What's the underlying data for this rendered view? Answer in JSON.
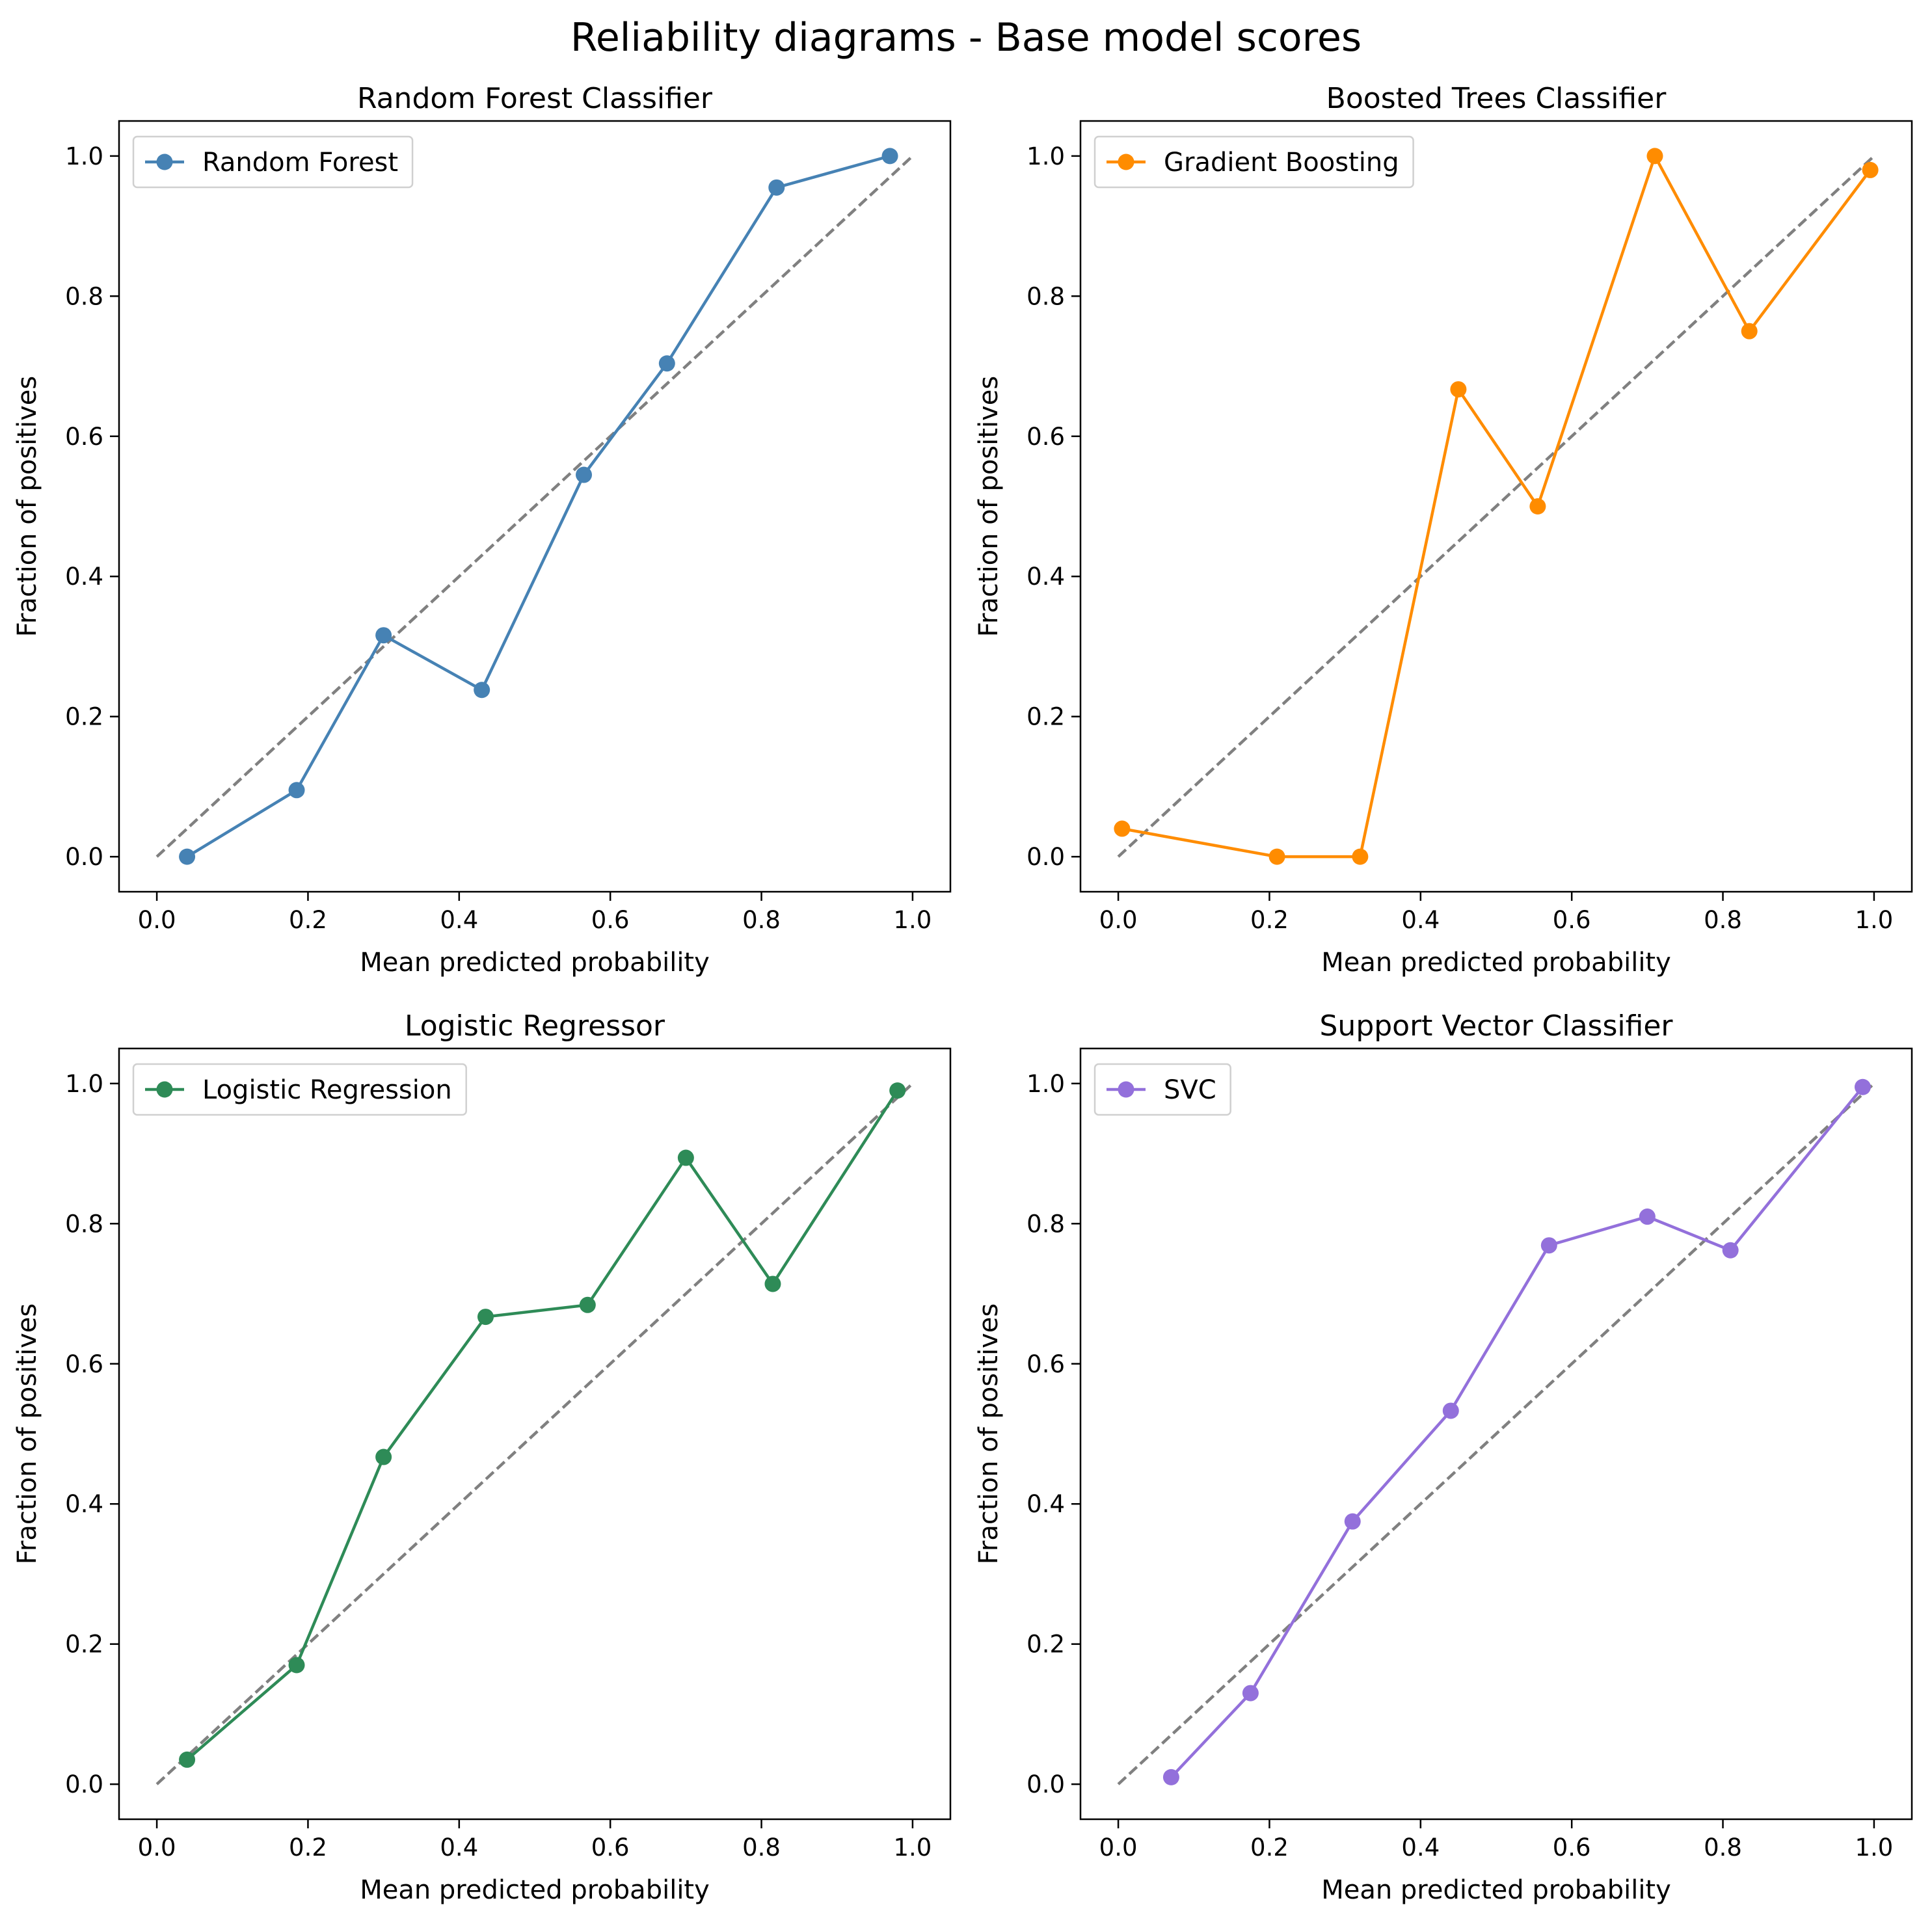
{
  "suptitle": "Reliability diagrams - Base model scores",
  "reference_line": {
    "color": "#808080",
    "style": "dashed",
    "points": [
      [
        0,
        0
      ],
      [
        1,
        1
      ]
    ]
  },
  "chart_data": [
    {
      "type": "line",
      "title": "Random Forest Classifier",
      "xlabel": "Mean predicted probability",
      "ylabel": "Fraction of positives",
      "xlim": [
        -0.05,
        1.05
      ],
      "ylim": [
        -0.05,
        1.05
      ],
      "xticks": [
        "0.0",
        "0.2",
        "0.4",
        "0.6",
        "0.8",
        "1.0"
      ],
      "yticks": [
        "0.0",
        "0.2",
        "0.4",
        "0.6",
        "0.8",
        "1.0"
      ],
      "legend": "upper left",
      "grid": false,
      "series": [
        {
          "name": "Random Forest",
          "color": "#4682B4",
          "marker": "circle",
          "x": [
            0.04,
            0.185,
            0.3,
            0.43,
            0.565,
            0.675,
            0.82,
            0.97
          ],
          "y": [
            0.0,
            0.095,
            0.316,
            0.238,
            0.545,
            0.704,
            0.955,
            1.0
          ]
        }
      ]
    },
    {
      "type": "line",
      "title": "Boosted Trees Classifier",
      "xlabel": "Mean predicted probability",
      "ylabel": "Fraction of positives",
      "xlim": [
        -0.05,
        1.05
      ],
      "ylim": [
        -0.05,
        1.05
      ],
      "xticks": [
        "0.0",
        "0.2",
        "0.4",
        "0.6",
        "0.8",
        "1.0"
      ],
      "yticks": [
        "0.0",
        "0.2",
        "0.4",
        "0.6",
        "0.8",
        "1.0"
      ],
      "legend": "upper left",
      "grid": false,
      "series": [
        {
          "name": "Gradient Boosting",
          "color": "#FF8C00",
          "marker": "circle",
          "x": [
            0.005,
            0.21,
            0.32,
            0.45,
            0.555,
            0.71,
            0.835,
            0.995
          ],
          "y": [
            0.04,
            0.0,
            0.0,
            0.667,
            0.5,
            1.0,
            0.75,
            0.98
          ]
        }
      ]
    },
    {
      "type": "line",
      "title": "Logistic Regressor",
      "xlabel": "Mean predicted probability",
      "ylabel": "Fraction of positives",
      "xlim": [
        -0.05,
        1.05
      ],
      "ylim": [
        -0.05,
        1.05
      ],
      "xticks": [
        "0.0",
        "0.2",
        "0.4",
        "0.6",
        "0.8",
        "1.0"
      ],
      "yticks": [
        "0.0",
        "0.2",
        "0.4",
        "0.6",
        "0.8",
        "1.0"
      ],
      "legend": "upper left",
      "grid": false,
      "series": [
        {
          "name": "Logistic Regression",
          "color": "#2E8B57",
          "marker": "circle",
          "x": [
            0.04,
            0.185,
            0.3,
            0.435,
            0.57,
            0.7,
            0.815,
            0.98
          ],
          "y": [
            0.035,
            0.17,
            0.467,
            0.667,
            0.684,
            0.894,
            0.714,
            0.99
          ]
        }
      ]
    },
    {
      "type": "line",
      "title": "Support Vector Classifier",
      "xlabel": "Mean predicted probability",
      "ylabel": "Fraction of positives",
      "xlim": [
        -0.05,
        1.05
      ],
      "ylim": [
        -0.05,
        1.05
      ],
      "xticks": [
        "0.0",
        "0.2",
        "0.4",
        "0.6",
        "0.8",
        "1.0"
      ],
      "yticks": [
        "0.0",
        "0.2",
        "0.4",
        "0.6",
        "0.8",
        "1.0"
      ],
      "legend": "upper left",
      "grid": false,
      "series": [
        {
          "name": "SVC",
          "color": "#9370DB",
          "marker": "circle",
          "x": [
            0.07,
            0.175,
            0.31,
            0.44,
            0.57,
            0.7,
            0.81,
            0.985
          ],
          "y": [
            0.01,
            0.13,
            0.375,
            0.533,
            0.769,
            0.81,
            0.762,
            0.995
          ]
        }
      ]
    }
  ]
}
